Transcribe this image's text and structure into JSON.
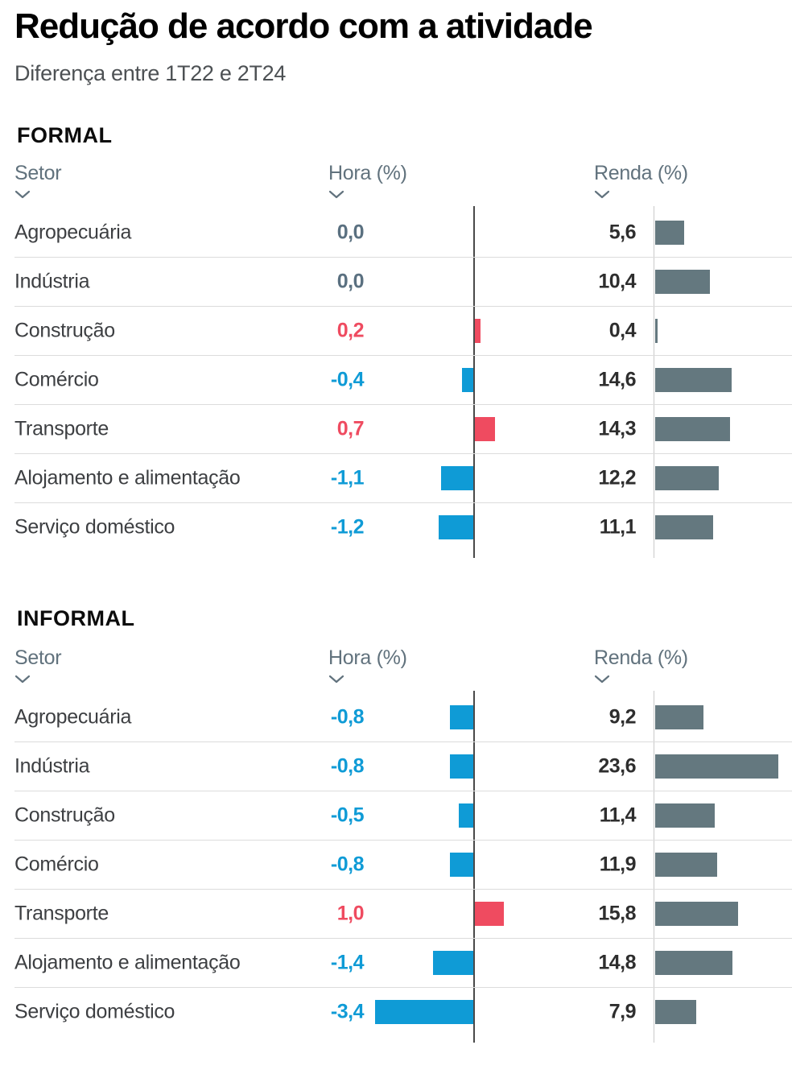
{
  "title": "Redução de acordo com a atividade",
  "subtitle": "Diferença entre 1T22 e 2T24",
  "colors": {
    "negative": "#0f9bd6",
    "positive": "#ef4b60",
    "zero": "#5a7080",
    "income_bar": "#64787f",
    "hours_axis": "#4a4a4a",
    "income_axis": "#c9c9c9"
  },
  "chart_data": [
    {
      "type": "bar",
      "section": "FORMAL",
      "columns": {
        "sector": "Setor",
        "hours": "Hora (%)",
        "income": "Renda (%)"
      },
      "legend_position": "none",
      "grid": false,
      "hours_axis_at": 0,
      "rows": [
        {
          "sector": "Agropecuária",
          "hours": 0.0,
          "hours_label": "0,0",
          "income": 5.6,
          "income_label": "5,6"
        },
        {
          "sector": "Indústria",
          "hours": 0.0,
          "hours_label": "0,0",
          "income": 10.4,
          "income_label": "10,4"
        },
        {
          "sector": "Construção",
          "hours": 0.2,
          "hours_label": "0,2",
          "income": 0.4,
          "income_label": "0,4"
        },
        {
          "sector": "Comércio",
          "hours": -0.4,
          "hours_label": "-0,4",
          "income": 14.6,
          "income_label": "14,6"
        },
        {
          "sector": "Transporte",
          "hours": 0.7,
          "hours_label": "0,7",
          "income": 14.3,
          "income_label": "14,3"
        },
        {
          "sector": "Alojamento e alimentação",
          "hours": -1.1,
          "hours_label": "-1,1",
          "income": 12.2,
          "income_label": "12,2"
        },
        {
          "sector": "Serviço doméstico",
          "hours": -1.2,
          "hours_label": "-1,2",
          "income": 11.1,
          "income_label": "11,1"
        }
      ]
    },
    {
      "type": "bar",
      "section": "INFORMAL",
      "columns": {
        "sector": "Setor",
        "hours": "Hora (%)",
        "income": "Renda (%)"
      },
      "legend_position": "none",
      "grid": false,
      "hours_axis_at": 0,
      "rows": [
        {
          "sector": "Agropecuária",
          "hours": -0.8,
          "hours_label": "-0,8",
          "income": 9.2,
          "income_label": "9,2"
        },
        {
          "sector": "Indústria",
          "hours": -0.8,
          "hours_label": "-0,8",
          "income": 23.6,
          "income_label": "23,6"
        },
        {
          "sector": "Construção",
          "hours": -0.5,
          "hours_label": "-0,5",
          "income": 11.4,
          "income_label": "11,4"
        },
        {
          "sector": "Comércio",
          "hours": -0.8,
          "hours_label": "-0,8",
          "income": 11.9,
          "income_label": "11,9"
        },
        {
          "sector": "Transporte",
          "hours": 1.0,
          "hours_label": "1,0",
          "income": 15.8,
          "income_label": "15,8"
        },
        {
          "sector": "Alojamento e alimentação",
          "hours": -1.4,
          "hours_label": "-1,4",
          "income": 14.8,
          "income_label": "14,8"
        },
        {
          "sector": "Serviço doméstico",
          "hours": -3.4,
          "hours_label": "-3,4",
          "income": 7.9,
          "income_label": "7,9"
        }
      ]
    }
  ]
}
